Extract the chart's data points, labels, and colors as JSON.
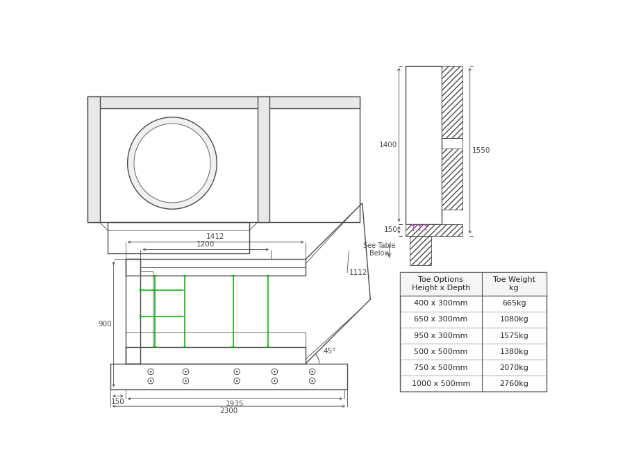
{
  "bg_color": "#ffffff",
  "line_color": "#4a4a4a",
  "dim_color": "#4a4a4a",
  "green_color": "#00aa00",
  "magenta_color": "#cc44cc",
  "table_header": [
    "Toe Options\nHeight x Depth",
    "Toe Weight\nkg"
  ],
  "table_rows": [
    [
      "400 x 300mm",
      "665kg"
    ],
    [
      "650 x 300mm",
      "1080kg"
    ],
    [
      "950 x 300mm",
      "1575kg"
    ],
    [
      "500 x 500mm",
      "1380kg"
    ],
    [
      "750 x 500mm",
      "2070kg"
    ],
    [
      "1000 x 500mm",
      "2760kg"
    ]
  ],
  "dim_fontsize": 7.5,
  "label_fontsize": 7.5,
  "lw_main": 1.0,
  "lw_thin": 0.6,
  "lw_dim": 0.6
}
